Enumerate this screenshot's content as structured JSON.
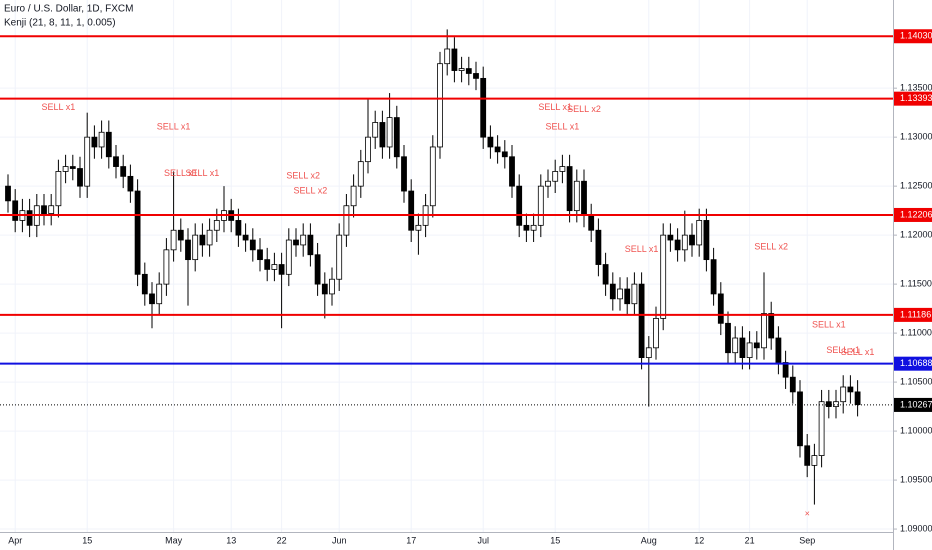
{
  "chart_data": {
    "type": "candlestick",
    "title": "Euro / U.S. Dollar, 1D, FXCM",
    "subtitle": "Kenji (21, 8, 11, 1, 0.005)",
    "categories": [
      null,
      "Apr",
      null,
      null,
      null,
      null,
      null,
      null,
      null,
      null,
      null,
      "15",
      null,
      null,
      null,
      null,
      null,
      null,
      null,
      null,
      null,
      null,
      null,
      "May",
      null,
      null,
      null,
      null,
      null,
      null,
      null,
      "13",
      null,
      null,
      null,
      null,
      null,
      null,
      "22",
      null,
      null,
      null,
      null,
      null,
      null,
      null,
      "Jun",
      null,
      null,
      null,
      null,
      null,
      null,
      null,
      null,
      null,
      "17",
      null,
      null,
      null,
      null,
      null,
      null,
      null,
      null,
      null,
      "Jul",
      null,
      null,
      null,
      null,
      null,
      null,
      null,
      null,
      null,
      "15",
      null,
      null,
      null,
      null,
      null,
      null,
      null,
      null,
      null,
      null,
      null,
      null,
      "Aug",
      null,
      null,
      null,
      null,
      null,
      null,
      "12",
      null,
      null,
      null,
      null,
      null,
      null,
      "21",
      null,
      null,
      null,
      null,
      null,
      null,
      null,
      "Sep",
      null,
      null,
      null,
      null,
      null,
      null,
      null
    ],
    "open": [
      1.125,
      1.1235,
      1.1215,
      1.1225,
      1.121,
      1.123,
      1.1222,
      1.123,
      1.1265,
      1.127,
      1.1268,
      1.125,
      1.13,
      1.129,
      1.1305,
      1.128,
      1.127,
      1.126,
      1.1245,
      1.116,
      1.114,
      1.113,
      1.115,
      1.1185,
      1.1205,
      1.1195,
      1.1175,
      1.12,
      1.119,
      1.1205,
      1.1215,
      1.1225,
      1.1215,
      1.12,
      1.1195,
      1.1185,
      1.1175,
      1.1165,
      1.117,
      1.116,
      1.1195,
      1.119,
      1.12,
      1.118,
      1.115,
      1.114,
      1.1155,
      1.12,
      1.123,
      1.125,
      1.1275,
      1.13,
      1.1315,
      1.129,
      1.132,
      1.128,
      1.1245,
      1.1205,
      1.121,
      1.123,
      1.129,
      1.1375,
      1.139,
      1.1368,
      1.137,
      1.1365,
      1.136,
      1.13,
      1.129,
      1.1285,
      1.128,
      1.125,
      1.121,
      1.1205,
      1.121,
      1.125,
      1.1255,
      1.1265,
      1.127,
      1.1225,
      1.1255,
      1.122,
      1.1205,
      1.117,
      1.115,
      1.1135,
      1.1145,
      1.113,
      1.115,
      1.1075,
      1.1085,
      1.1115,
      1.12,
      1.1195,
      1.1185,
      1.12,
      1.119,
      1.1215,
      1.1175,
      1.114,
      1.111,
      1.108,
      1.1095,
      1.1075,
      1.109,
      1.1085,
      1.112,
      1.1095,
      1.107,
      1.1055,
      1.104,
      1.0985,
      1.0965,
      1.0975,
      1.103,
      1.1025,
      1.103,
      1.1045,
      1.104
    ],
    "high": [
      1.1262,
      1.1247,
      1.1237,
      1.1237,
      1.1242,
      1.1242,
      1.1242,
      1.1277,
      1.1282,
      1.1282,
      1.128,
      1.1325,
      1.1312,
      1.1317,
      1.1317,
      1.1292,
      1.1282,
      1.1272,
      1.1257,
      1.1172,
      1.1152,
      1.1162,
      1.1197,
      1.1265,
      1.1217,
      1.1207,
      1.1212,
      1.1212,
      1.1217,
      1.1227,
      1.125,
      1.1237,
      1.1227,
      1.1212,
      1.1207,
      1.1197,
      1.1187,
      1.1182,
      1.1182,
      1.1207,
      1.1207,
      1.1212,
      1.1212,
      1.1192,
      1.1162,
      1.1167,
      1.1212,
      1.1242,
      1.1262,
      1.1287,
      1.134,
      1.1327,
      1.1327,
      1.1345,
      1.1332,
      1.1292,
      1.1257,
      1.1222,
      1.1242,
      1.1302,
      1.1387,
      1.141,
      1.1402,
      1.1382,
      1.1382,
      1.1377,
      1.1372,
      1.1312,
      1.1302,
      1.1297,
      1.1292,
      1.1262,
      1.1222,
      1.1222,
      1.1262,
      1.1267,
      1.1277,
      1.1282,
      1.1282,
      1.1267,
      1.1267,
      1.1232,
      1.1217,
      1.1182,
      1.1162,
      1.1157,
      1.1157,
      1.1162,
      1.1162,
      1.1097,
      1.1127,
      1.1212,
      1.1212,
      1.1207,
      1.1225,
      1.1212,
      1.1227,
      1.1227,
      1.1187,
      1.1152,
      1.1122,
      1.1107,
      1.1107,
      1.1102,
      1.1102,
      1.1162,
      1.1132,
      1.1107,
      1.1082,
      1.1067,
      1.1052,
      1.0997,
      1.0987,
      1.1042,
      1.1042,
      1.1042,
      1.1057,
      1.1057,
      1.1052
    ],
    "low": [
      1.1223,
      1.1203,
      1.1203,
      1.1198,
      1.1198,
      1.121,
      1.121,
      1.1218,
      1.1253,
      1.1256,
      1.1238,
      1.1238,
      1.1278,
      1.1278,
      1.1268,
      1.1258,
      1.1248,
      1.1233,
      1.1148,
      1.1128,
      1.1105,
      1.1118,
      1.1138,
      1.1173,
      1.1183,
      1.1128,
      1.1163,
      1.1178,
      1.1178,
      1.1193,
      1.1203,
      1.1203,
      1.1188,
      1.1183,
      1.1173,
      1.1163,
      1.1153,
      1.1153,
      1.1105,
      1.1148,
      1.1178,
      1.1178,
      1.1168,
      1.1138,
      1.1115,
      1.1128,
      1.1143,
      1.1188,
      1.1218,
      1.1238,
      1.1263,
      1.1288,
      1.1278,
      1.1278,
      1.1268,
      1.1233,
      1.1193,
      1.118,
      1.1198,
      1.1218,
      1.1278,
      1.1363,
      1.1356,
      1.1356,
      1.1353,
      1.1348,
      1.1288,
      1.1278,
      1.1273,
      1.1268,
      1.1238,
      1.1198,
      1.1193,
      1.1193,
      1.1198,
      1.1238,
      1.1243,
      1.1253,
      1.1213,
      1.1213,
      1.1208,
      1.1193,
      1.1158,
      1.1138,
      1.1123,
      1.1123,
      1.1118,
      1.1118,
      1.1063,
      1.1025,
      1.1073,
      1.1103,
      1.1183,
      1.1173,
      1.1173,
      1.1178,
      1.1178,
      1.1163,
      1.1128,
      1.1098,
      1.1068,
      1.1068,
      1.1063,
      1.1063,
      1.1073,
      1.1073,
      1.1083,
      1.1058,
      1.1043,
      1.1028,
      1.0973,
      1.0953,
      1.0925,
      1.0963,
      1.1013,
      1.1013,
      1.1018,
      1.1028,
      1.1015
    ],
    "close": [
      1.1235,
      1.1215,
      1.1225,
      1.121,
      1.123,
      1.1222,
      1.123,
      1.1265,
      1.127,
      1.1268,
      1.125,
      1.13,
      1.129,
      1.1305,
      1.128,
      1.127,
      1.126,
      1.1245,
      1.116,
      1.114,
      1.113,
      1.115,
      1.1185,
      1.1205,
      1.1195,
      1.1175,
      1.12,
      1.119,
      1.1205,
      1.1215,
      1.1225,
      1.1215,
      1.12,
      1.1195,
      1.1185,
      1.1175,
      1.1165,
      1.117,
      1.116,
      1.1195,
      1.119,
      1.12,
      1.118,
      1.115,
      1.114,
      1.1155,
      1.12,
      1.123,
      1.125,
      1.1275,
      1.13,
      1.1315,
      1.129,
      1.132,
      1.128,
      1.1245,
      1.1205,
      1.121,
      1.123,
      1.129,
      1.1375,
      1.139,
      1.1368,
      1.137,
      1.1365,
      1.136,
      1.13,
      1.129,
      1.1285,
      1.128,
      1.125,
      1.121,
      1.1205,
      1.121,
      1.125,
      1.1255,
      1.1265,
      1.127,
      1.1225,
      1.1255,
      1.122,
      1.1205,
      1.117,
      1.115,
      1.1135,
      1.1145,
      1.113,
      1.115,
      1.1075,
      1.1085,
      1.1115,
      1.12,
      1.1195,
      1.1185,
      1.12,
      1.119,
      1.1215,
      1.1175,
      1.114,
      1.111,
      1.108,
      1.1095,
      1.1075,
      1.109,
      1.1085,
      1.112,
      1.1095,
      1.107,
      1.1055,
      1.104,
      1.0985,
      1.0965,
      1.0975,
      1.103,
      1.1025,
      1.103,
      1.1045,
      1.104,
      1.1027
    ],
    "up_color": "#ffffff",
    "down_color": "#000000",
    "ylim": [
      1.0897,
      1.144
    ],
    "yticks": [
      {
        "value": 1.09,
        "label": "1.09000"
      },
      {
        "value": 1.095,
        "label": "1.09500"
      },
      {
        "value": 1.1,
        "label": "1.10000"
      },
      {
        "value": 1.105,
        "label": "1.10500"
      },
      {
        "value": 1.11,
        "label": "1.11000"
      },
      {
        "value": 1.115,
        "label": "1.11500"
      },
      {
        "value": 1.12,
        "label": "1.12000"
      },
      {
        "value": 1.125,
        "label": "1.12500"
      },
      {
        "value": 1.13,
        "label": "1.13000"
      },
      {
        "value": 1.135,
        "label": "1.13500"
      }
    ],
    "grid": true,
    "levels": [
      {
        "value": 1.1403,
        "label": "1.14030",
        "color": "#f00000"
      },
      {
        "value": 1.13393,
        "label": "1.13393",
        "color": "#f00000"
      },
      {
        "value": 1.12206,
        "label": "1.12206",
        "color": "#f00000"
      },
      {
        "value": 1.11186,
        "label": "1.11186",
        "color": "#f00000"
      },
      {
        "value": 1.10688,
        "label": "1.10688",
        "color": "#1010e0"
      }
    ],
    "last_price": {
      "value": 1.10267,
      "label": "1.10267",
      "color": "#000000"
    },
    "annotation_color": "#ef5350",
    "annotations": [
      {
        "text": "SELL x1",
        "index": 7,
        "value": 1.133
      },
      {
        "text": "SELL x1",
        "index": 23,
        "value": 1.131
      },
      {
        "text": "SELL x1",
        "index": 24,
        "value": 1.1263
      },
      {
        "text": "SELL x1",
        "index": 27,
        "value": 1.1263
      },
      {
        "text": "SELL x2",
        "index": 41,
        "value": 1.126
      },
      {
        "text": "SELL x2",
        "index": 42,
        "value": 1.1245
      },
      {
        "text": "SELL x1",
        "index": 76,
        "value": 1.133
      },
      {
        "text": "SELL x1",
        "index": 77,
        "value": 1.131
      },
      {
        "text": "SELL x2",
        "index": 80,
        "value": 1.1328
      },
      {
        "text": "SELL x1",
        "index": 88,
        "value": 1.1185
      },
      {
        "text": "SELL x2",
        "index": 106,
        "value": 1.1188
      },
      {
        "text": "SELL x1",
        "index": 114,
        "value": 1.1108
      },
      {
        "text": "SELL x1",
        "index": 116,
        "value": 1.1082
      },
      {
        "text": "SELL x1",
        "index": 118,
        "value": 1.108
      },
      {
        "text": "×",
        "index": 111,
        "value": 1.0915
      }
    ]
  }
}
